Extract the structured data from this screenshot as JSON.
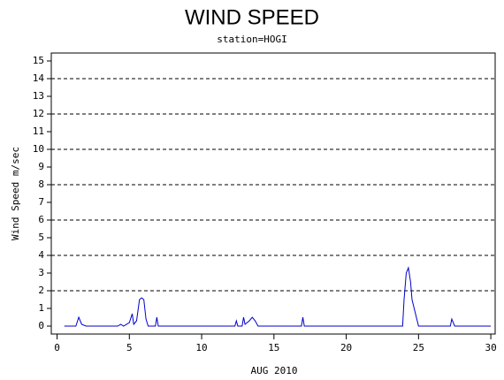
{
  "chart_data": {
    "type": "line",
    "title": "WIND SPEED",
    "subtitle": "station=HOGI",
    "x_label": "AUG 2010",
    "y_label": "Wind Speed m/sec",
    "x": [
      0.5,
      1.3,
      1.5,
      1.7,
      2.0,
      4.2,
      4.4,
      4.6,
      5.0,
      5.2,
      5.3,
      5.5,
      5.7,
      5.85,
      6.0,
      6.15,
      6.3,
      6.8,
      6.9,
      7.0,
      12.3,
      12.4,
      12.5,
      12.8,
      12.9,
      13.0,
      13.3,
      13.5,
      13.7,
      13.9,
      16.9,
      17.0,
      17.1,
      23.9,
      24.0,
      24.15,
      24.3,
      24.45,
      24.55,
      24.7,
      25.0,
      27.2,
      27.3,
      27.5,
      30
    ],
    "series": [
      {
        "name": "Wind Speed",
        "color": "#0000cc",
        "values": [
          0,
          0,
          0.5,
          0.1,
          0,
          0,
          0.1,
          0,
          0.2,
          0.7,
          0.1,
          0.3,
          1.5,
          1.6,
          1.5,
          0.4,
          0,
          0,
          0.5,
          0,
          0,
          0.3,
          0,
          0,
          0.5,
          0.1,
          0.3,
          0.5,
          0.3,
          0,
          0,
          0.5,
          0,
          0,
          1.5,
          3.0,
          3.3,
          2.5,
          1.5,
          1.0,
          0,
          0,
          0.4,
          0,
          0
        ]
      }
    ],
    "xlim": [
      -0.4,
      30.3
    ],
    "xticks": [
      0,
      5,
      10,
      15,
      20,
      25,
      30
    ],
    "ylim": [
      -0.45,
      15.45
    ],
    "yticks": [
      0,
      1,
      2,
      3,
      4,
      5,
      6,
      7,
      8,
      9,
      10,
      11,
      12,
      13,
      14,
      15
    ],
    "grid_lines": [
      2,
      4,
      6,
      8,
      10,
      12,
      14
    ]
  }
}
